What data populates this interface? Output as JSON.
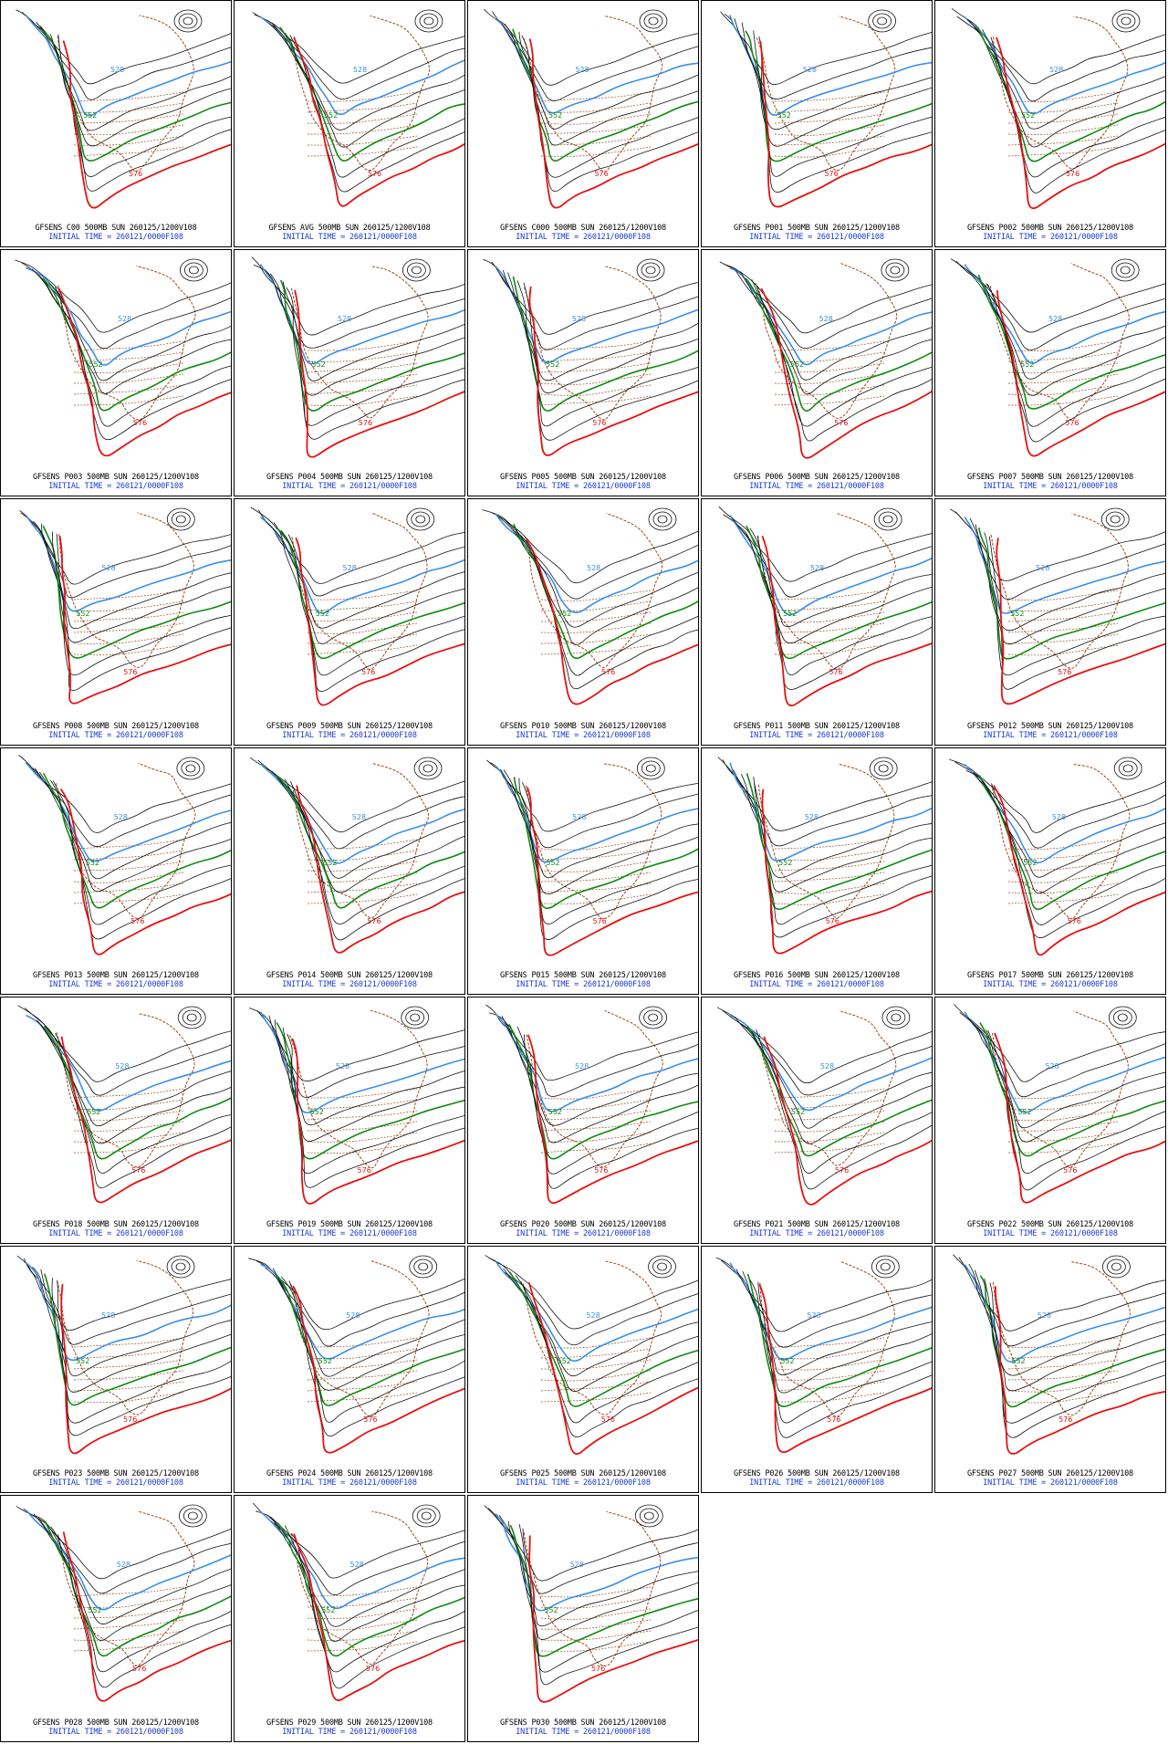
{
  "colors": {
    "contour_black": "#111111",
    "contour_528": "#3a8fe8",
    "contour_552": "#0f8a12",
    "contour_576": "#e81010",
    "coastline": "#9b4a1e",
    "caption_line1": "#000000",
    "caption_line2": "#1a3ad8"
  },
  "contour_labels": {
    "c528": "528",
    "c552": "552",
    "c576": "576"
  },
  "caption_suffix": "500MB SUN 260125/1200V108",
  "initial_time_text": "INITIAL TIME = 260121/0000F108",
  "panels": [
    {
      "member": "GFSENS C00"
    },
    {
      "member": "GFSENS AVG"
    },
    {
      "member": "GFSENS C000"
    },
    {
      "member": "GFSENS P001"
    },
    {
      "member": "GFSENS P002"
    },
    {
      "member": "GFSENS P003"
    },
    {
      "member": "GFSENS P004"
    },
    {
      "member": "GFSENS P005"
    },
    {
      "member": "GFSENS P006"
    },
    {
      "member": "GFSENS P007"
    },
    {
      "member": "GFSENS P008"
    },
    {
      "member": "GFSENS P009"
    },
    {
      "member": "GFSENS P010"
    },
    {
      "member": "GFSENS P011"
    },
    {
      "member": "GFSENS P012"
    },
    {
      "member": "GFSENS P013"
    },
    {
      "member": "GFSENS P014"
    },
    {
      "member": "GFSENS P015"
    },
    {
      "member": "GFSENS P016"
    },
    {
      "member": "GFSENS P017"
    },
    {
      "member": "GFSENS P018"
    },
    {
      "member": "GFSENS P019"
    },
    {
      "member": "GFSENS P020"
    },
    {
      "member": "GFSENS P021"
    },
    {
      "member": "GFSENS P022"
    },
    {
      "member": "GFSENS P023"
    },
    {
      "member": "GFSENS P024"
    },
    {
      "member": "GFSENS P025"
    },
    {
      "member": "GFSENS P026"
    },
    {
      "member": "GFSENS P027"
    },
    {
      "member": "GFSENS P028"
    },
    {
      "member": "GFSENS P029"
    },
    {
      "member": "GFSENS P030"
    }
  ]
}
